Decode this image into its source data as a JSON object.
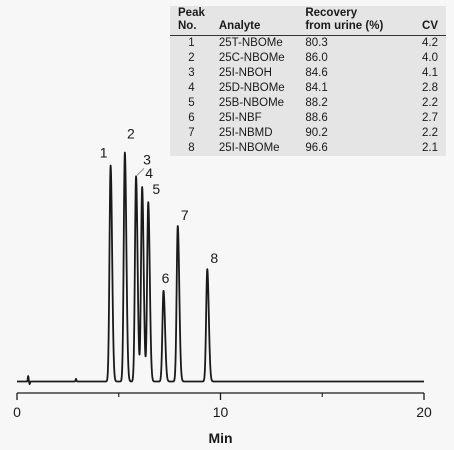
{
  "chart_data": {
    "type": "line",
    "xlabel": "Min",
    "ylabel": "",
    "xlim": [
      0,
      20
    ],
    "x_ticks": [
      "0",
      "10",
      "20"
    ],
    "baseline_level": 0.0,
    "peaks": [
      {
        "label": "1",
        "time": 4.6,
        "height": 1.0
      },
      {
        "label": "2",
        "time": 5.3,
        "height": 1.06
      },
      {
        "label": "3",
        "time": 5.85,
        "height": 0.95
      },
      {
        "label": "4",
        "time": 6.15,
        "height": 0.9
      },
      {
        "label": "5",
        "time": 6.45,
        "height": 0.83
      },
      {
        "label": "6",
        "time": 7.2,
        "height": 0.42
      },
      {
        "label": "7",
        "time": 7.9,
        "height": 0.72
      },
      {
        "label": "8",
        "time": 9.35,
        "height": 0.52
      }
    ]
  },
  "legend_table": {
    "headers": {
      "peak": [
        "Peak",
        "No."
      ],
      "analyte": [
        "",
        "Analyte"
      ],
      "recovery": [
        "Recovery",
        "from urine (%)"
      ],
      "cv": [
        "",
        "CV"
      ]
    },
    "rows": [
      {
        "peak": "1",
        "analyte": "25T-NBOMe",
        "recovery": "80.3",
        "cv": "4.2"
      },
      {
        "peak": "2",
        "analyte": "25C-NBOMe",
        "recovery": "86.0",
        "cv": "4.0"
      },
      {
        "peak": "3",
        "analyte": "25I-NBOH",
        "recovery": "84.6",
        "cv": "4.1"
      },
      {
        "peak": "4",
        "analyte": "25D-NBOMe",
        "recovery": "84.1",
        "cv": "2.8"
      },
      {
        "peak": "5",
        "analyte": "25B-NBOMe",
        "recovery": "88.2",
        "cv": "2.2"
      },
      {
        "peak": "6",
        "analyte": "25I-NBF",
        "recovery": "88.6",
        "cv": "2.7"
      },
      {
        "peak": "7",
        "analyte": "25I-NBMD",
        "recovery": "90.2",
        "cv": "2.2"
      },
      {
        "peak": "8",
        "analyte": "25I-NBOMe",
        "recovery": "96.6",
        "cv": "2.1"
      }
    ]
  },
  "colors": {
    "trace": "#1a1a1a",
    "background": "#f7f7f7",
    "table_background": "#e5e5e5"
  }
}
